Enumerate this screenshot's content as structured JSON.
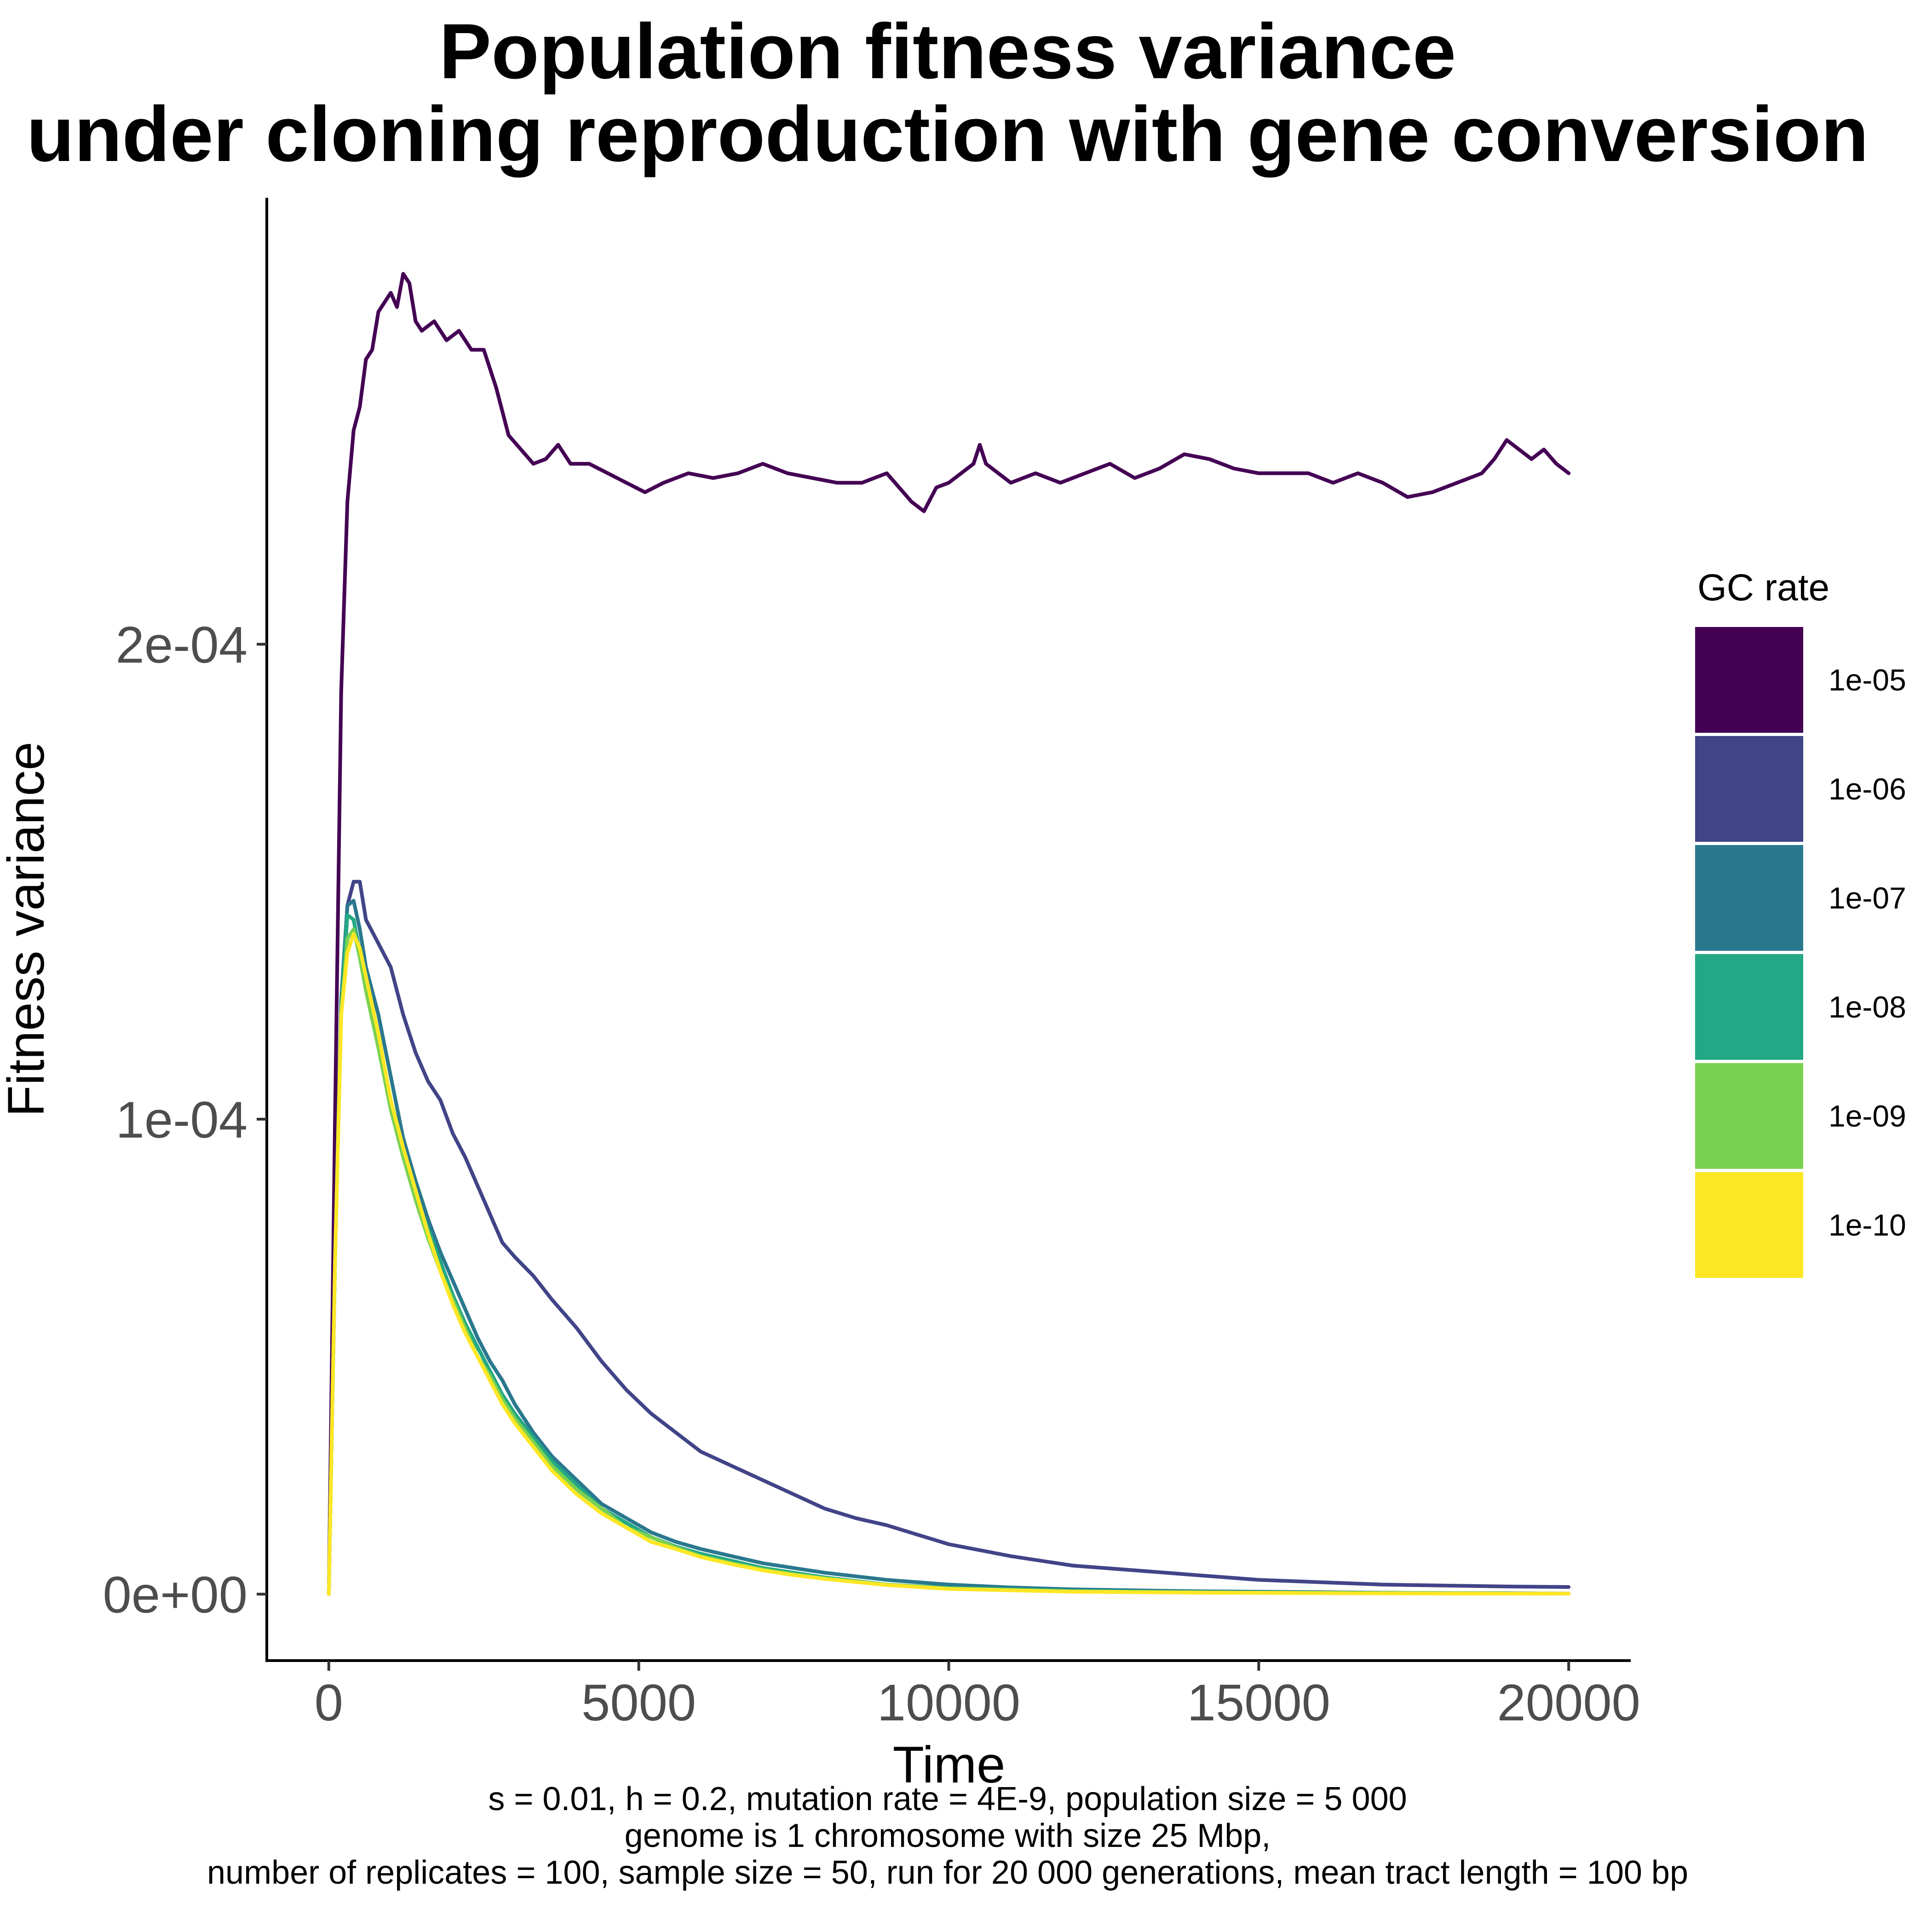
{
  "chart_data": {
    "type": "line",
    "title_lines": [
      "Population fitness variance",
      "under cloning reproduction with gene conversion"
    ],
    "xlabel": "Time",
    "ylabel": "Fitness variance",
    "xlim": [
      -1000,
      21000
    ],
    "ylim": [
      -1.4e-05,
      0.000294
    ],
    "x_ticks": [
      0,
      5000,
      10000,
      15000,
      20000
    ],
    "x_tick_labels": [
      "0",
      "5000",
      "10000",
      "15000",
      "20000"
    ],
    "y_ticks": [
      0,
      0.0001,
      0.0002
    ],
    "y_tick_labels": [
      "0e+00",
      "1e-04",
      "2e-04"
    ],
    "grid": false,
    "legend": {
      "title": "GC rate",
      "position": "right"
    },
    "series": [
      {
        "name": "1e-05",
        "color": "#440154",
        "x": [
          0,
          100,
          200,
          300,
          400,
          500,
          600,
          700,
          800,
          900,
          1000,
          1100,
          1200,
          1300,
          1400,
          1500,
          1700,
          1900,
          2100,
          2300,
          2500,
          2700,
          2900,
          3100,
          3300,
          3500,
          3700,
          3900,
          4200,
          4500,
          4800,
          5100,
          5400,
          5800,
          6200,
          6600,
          7000,
          7400,
          7800,
          8200,
          8600,
          9000,
          9400,
          9600,
          9800,
          10000,
          10200,
          10400,
          10500,
          10600,
          10800,
          11000,
          11400,
          11800,
          12200,
          12600,
          13000,
          13400,
          13800,
          14200,
          14600,
          15000,
          15400,
          15800,
          16200,
          16600,
          17000,
          17400,
          17800,
          18200,
          18600,
          18800,
          19000,
          19200,
          19400,
          19600,
          19800,
          20000
        ],
        "values": [
          0,
          0.0001,
          0.00019,
          0.00023,
          0.000245,
          0.00025,
          0.00026,
          0.000262,
          0.00027,
          0.000272,
          0.000274,
          0.000271,
          0.000278,
          0.000276,
          0.000268,
          0.000266,
          0.000268,
          0.000264,
          0.000266,
          0.000262,
          0.000262,
          0.000254,
          0.000244,
          0.000241,
          0.000238,
          0.000239,
          0.000242,
          0.000238,
          0.000238,
          0.000236,
          0.000234,
          0.000232,
          0.000234,
          0.000236,
          0.000235,
          0.000236,
          0.000238,
          0.000236,
          0.000235,
          0.000234,
          0.000234,
          0.000236,
          0.00023,
          0.000228,
          0.000233,
          0.000234,
          0.000236,
          0.000238,
          0.000242,
          0.000238,
          0.000236,
          0.000234,
          0.000236,
          0.000234,
          0.000236,
          0.000238,
          0.000235,
          0.000237,
          0.00024,
          0.000239,
          0.000237,
          0.000236,
          0.000236,
          0.000236,
          0.000234,
          0.000236,
          0.000234,
          0.000231,
          0.000232,
          0.000234,
          0.000236,
          0.000239,
          0.000243,
          0.000241,
          0.000239,
          0.000241,
          0.000238,
          0.000236
        ]
      },
      {
        "name": "1e-06",
        "color": "#414487",
        "x": [
          0,
          100,
          200,
          300,
          400,
          500,
          600,
          800,
          1000,
          1200,
          1400,
          1600,
          1800,
          2000,
          2200,
          2400,
          2600,
          2800,
          3000,
          3300,
          3600,
          4000,
          4400,
          4800,
          5200,
          5600,
          6000,
          6500,
          7000,
          7500,
          8000,
          8500,
          9000,
          9500,
          10000,
          11000,
          12000,
          13000,
          14000,
          15000,
          16000,
          17000,
          18000,
          19000,
          20000
        ],
        "values": [
          0,
          7e-05,
          0.000125,
          0.000145,
          0.00015,
          0.00015,
          0.000142,
          0.000137,
          0.000132,
          0.000122,
          0.000114,
          0.000108,
          0.000104,
          9.7e-05,
          9.2e-05,
          8.6e-05,
          8e-05,
          7.4e-05,
          7.1e-05,
          6.7e-05,
          6.2e-05,
          5.6e-05,
          4.9e-05,
          4.3e-05,
          3.8e-05,
          3.4e-05,
          3e-05,
          2.7e-05,
          2.4e-05,
          2.1e-05,
          1.8e-05,
          1.6e-05,
          1.45e-05,
          1.25e-05,
          1.05e-05,
          8e-06,
          6e-06,
          5e-06,
          4e-06,
          3e-06,
          2.5e-06,
          2e-06,
          1.8e-06,
          1.6e-06,
          1.5e-06
        ]
      },
      {
        "name": "1e-07",
        "color": "#2A788E",
        "x": [
          0,
          100,
          200,
          300,
          400,
          500,
          600,
          800,
          1000,
          1200,
          1400,
          1600,
          1800,
          2000,
          2200,
          2400,
          2600,
          2800,
          3000,
          3300,
          3600,
          4000,
          4400,
          4800,
          5200,
          5600,
          6000,
          6500,
          7000,
          7500,
          8000,
          9000,
          10000,
          11000,
          12000,
          13000,
          14000,
          15000,
          16000,
          17000,
          18000,
          19000,
          20000
        ],
        "values": [
          0,
          7e-05,
          0.000125,
          0.000145,
          0.000146,
          0.00014,
          0.000132,
          0.000122,
          0.000109,
          9.6e-05,
          8.7e-05,
          7.9e-05,
          7.2e-05,
          6.6e-05,
          6e-05,
          5.4e-05,
          4.9e-05,
          4.5e-05,
          4e-05,
          3.4e-05,
          2.9e-05,
          2.4e-05,
          1.9e-05,
          1.6e-05,
          1.3e-05,
          1.1e-05,
          9.5e-06,
          8e-06,
          6.5e-06,
          5.5e-06,
          4.5e-06,
          3e-06,
          2e-06,
          1.4e-06,
          1e-06,
          8e-07,
          6e-07,
          5e-07,
          4e-07,
          3e-07,
          2e-07,
          2e-07,
          1e-07
        ]
      },
      {
        "name": "1e-08",
        "color": "#22A884",
        "x": [
          0,
          100,
          200,
          300,
          400,
          500,
          600,
          800,
          1000,
          1200,
          1400,
          1600,
          1800,
          2000,
          2200,
          2400,
          2600,
          2800,
          3000,
          3300,
          3600,
          4000,
          4400,
          4800,
          5200,
          5600,
          6000,
          6500,
          7000,
          7500,
          8000,
          9000,
          10000,
          12000,
          14000,
          16000,
          18000,
          20000
        ],
        "values": [
          0,
          7e-05,
          0.000123,
          0.000143,
          0.000142,
          0.000135,
          0.000128,
          0.000116,
          0.000104,
          9.4e-05,
          8.4e-05,
          7.7e-05,
          7e-05,
          6.3e-05,
          5.7e-05,
          5.2e-05,
          4.7e-05,
          4.2e-05,
          3.8e-05,
          3.3e-05,
          2.8e-05,
          2.3e-05,
          1.8e-05,
          1.5e-05,
          1.2e-05,
          1e-05,
          8.5e-06,
          7e-06,
          5.5e-06,
          4.5e-06,
          3.5e-06,
          2e-06,
          1.3e-06,
          7e-07,
          4e-07,
          3e-07,
          2e-07,
          1e-07
        ]
      },
      {
        "name": "1e-09",
        "color": "#7AD151",
        "x": [
          0,
          100,
          200,
          300,
          400,
          500,
          600,
          800,
          1000,
          1200,
          1400,
          1600,
          1800,
          2000,
          2200,
          2400,
          2600,
          2800,
          3000,
          3300,
          3600,
          4000,
          4400,
          4800,
          5200,
          5600,
          6000,
          6500,
          7000,
          7500,
          8000,
          9000,
          10000,
          12000,
          14000,
          16000,
          18000,
          20000
        ],
        "values": [
          0,
          7e-05,
          0.000122,
          0.000138,
          0.00014,
          0.000134,
          0.000127,
          0.000115,
          0.000102,
          9.2e-05,
          8.3e-05,
          7.5e-05,
          6.8e-05,
          6.2e-05,
          5.6e-05,
          5e-05,
          4.6e-05,
          4.1e-05,
          3.7e-05,
          3.2e-05,
          2.7e-05,
          2.2e-05,
          1.8e-05,
          1.4e-05,
          1.2e-05,
          9.8e-06,
          8e-06,
          6.5e-06,
          5.2e-06,
          4.2e-06,
          3.3e-06,
          2e-06,
          1.2e-06,
          6e-07,
          4e-07,
          3e-07,
          2e-07,
          1e-07
        ]
      },
      {
        "name": "1e-10",
        "color": "#FDE725",
        "x": [
          0,
          100,
          200,
          300,
          400,
          500,
          600,
          800,
          1000,
          1200,
          1400,
          1600,
          1800,
          2000,
          2200,
          2400,
          2600,
          2800,
          3000,
          3300,
          3600,
          4000,
          4400,
          4800,
          5200,
          5600,
          6000,
          6500,
          7000,
          7500,
          8000,
          9000,
          10000,
          12000,
          14000,
          16000,
          18000,
          20000
        ],
        "values": [
          0,
          7e-05,
          0.000122,
          0.000135,
          0.000139,
          0.000136,
          0.00013,
          0.000118,
          0.000104,
          9.4e-05,
          8.5e-05,
          7.6e-05,
          6.8e-05,
          6.1e-05,
          5.5e-05,
          5e-05,
          4.5e-05,
          4e-05,
          3.6e-05,
          3.1e-05,
          2.6e-05,
          2.1e-05,
          1.7e-05,
          1.4e-05,
          1.1e-05,
          9.5e-06,
          7.8e-06,
          6.3e-06,
          5e-06,
          4e-06,
          3.2e-06,
          1.9e-06,
          1.1e-06,
          5e-07,
          3e-07,
          2e-07,
          1e-07,
          1e-07
        ]
      }
    ],
    "caption_lines": [
      "s = 0.01, h = 0.2, mutation rate = 4E-9, population size = 5 000",
      "genome is 1 chromosome with size 25 Mbp,",
      "number of replicates = 100, sample size = 50, run for 20 000 generations, mean tract length = 100 bp"
    ]
  }
}
